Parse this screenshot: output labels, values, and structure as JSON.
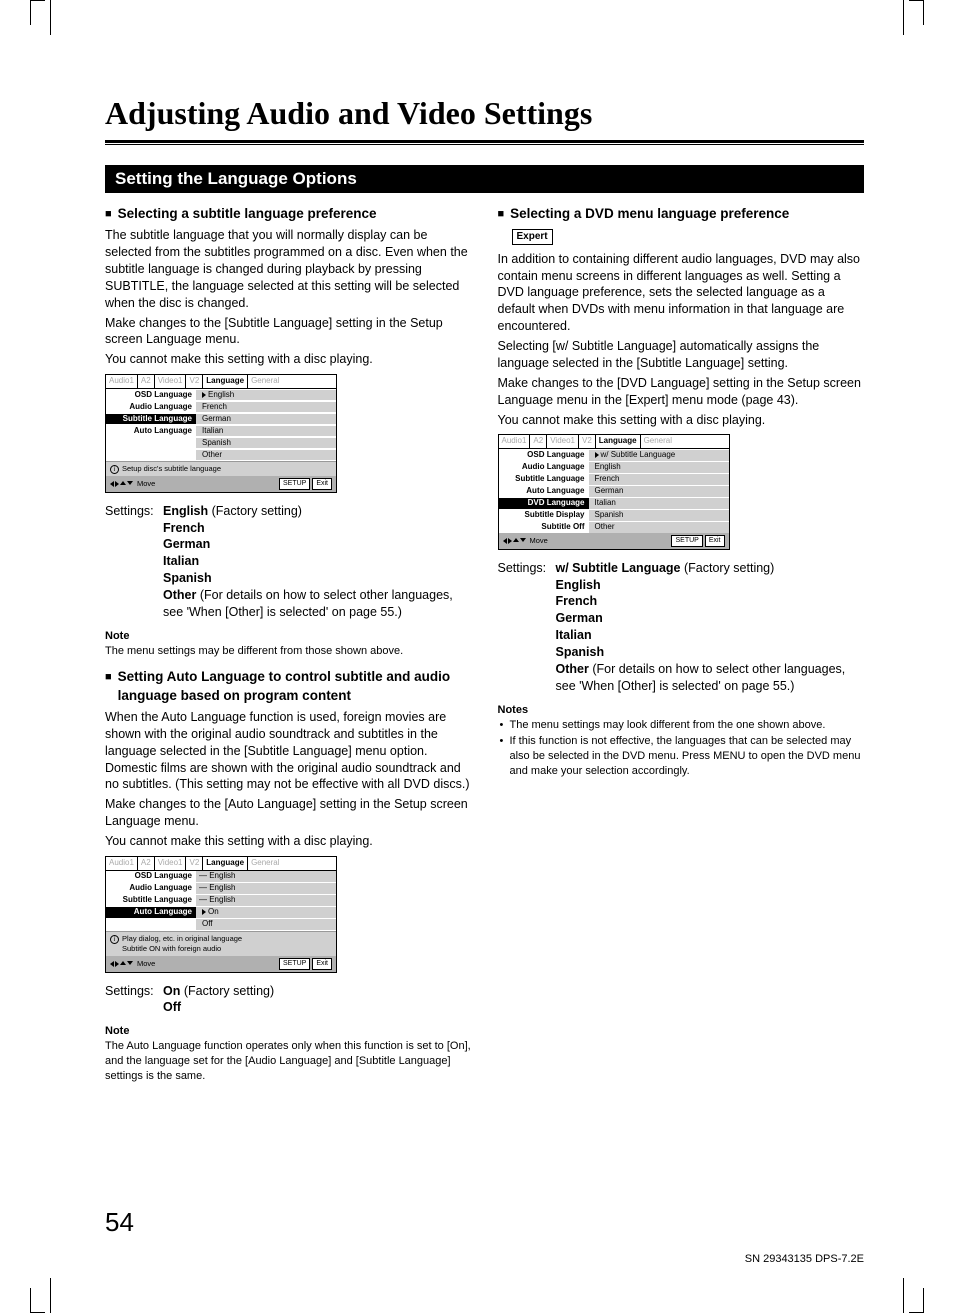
{
  "page": {
    "title": "Adjusting Audio and Video Settings",
    "section_bar": "Setting the Language Options",
    "page_number": "54",
    "footer_code": "SN 29343135 DPS-7.2E"
  },
  "left": {
    "h1": "Selecting a subtitle language preference",
    "p1": "The subtitle language that you will normally display can be selected from the subtitles programmed on a disc. Even when the subtitle language is changed during playback by pressing SUBTITLE, the language selected at this setting will be selected when the disc is changed.",
    "p2": "Make changes to the [Subtitle Language] setting in the Setup screen Language menu.",
    "p3": "You cannot make this setting with a disc playing.",
    "menu1": {
      "tabs": [
        "Audio1",
        "A2",
        "Video1",
        "V2",
        "Language",
        "General"
      ],
      "active_tab": "Language",
      "rows": [
        {
          "label": "OSD Language",
          "value": "English",
          "hl": false,
          "pointer": true
        },
        {
          "label": "Audio Language",
          "value": "French",
          "hl": false
        },
        {
          "label": "Subtitle Language",
          "value": "German",
          "hl": true
        },
        {
          "label": "Auto Language",
          "value": "Italian",
          "hl": false
        },
        {
          "label": "",
          "value": "Spanish",
          "hl": false
        },
        {
          "label": "",
          "value": "Other",
          "hl": false
        }
      ],
      "helper": "Setup disc's subtitle language",
      "footer_move": "Move",
      "btn_setup": "SETUP",
      "btn_exit": "Exit"
    },
    "settings1_label": "Settings:",
    "settings1": [
      {
        "bold": "English",
        "suffix": " (Factory setting)"
      },
      {
        "bold": "French",
        "suffix": ""
      },
      {
        "bold": "German",
        "suffix": ""
      },
      {
        "bold": "Italian",
        "suffix": ""
      },
      {
        "bold": "Spanish",
        "suffix": ""
      },
      {
        "bold": "Other",
        "suffix": " (For details on how to select other languages, see 'When [Other] is selected' on page 55.)"
      }
    ],
    "note1_label": "Note",
    "note1": "The menu settings may be different from those shown above.",
    "h2": "Setting Auto Language to control subtitle and audio language based on program content",
    "p4": "When the Auto Language function is used, foreign movies are shown with the original audio soundtrack and subtitles in the language selected in the [Subtitle Language] menu option. Domestic films are shown with the original audio soundtrack and no subtitles. (This setting may not be effective with all DVD discs.)",
    "p5": "Make changes to the [Auto Language] setting in the Setup screen Language menu.",
    "p6": "You cannot make this setting with a disc playing.",
    "menu2": {
      "tabs": [
        "Audio1",
        "A2",
        "Video1",
        "V2",
        "Language",
        "General"
      ],
      "active_tab": "Language",
      "rows": [
        {
          "label": "OSD Language",
          "value": "English",
          "dash": true
        },
        {
          "label": "Audio Language",
          "value": "English",
          "dash": true
        },
        {
          "label": "Subtitle Language",
          "value": "English",
          "dash": true
        },
        {
          "label": "Auto Language",
          "value": "On",
          "hl": true,
          "pointer": true
        },
        {
          "label": "",
          "value": "Off"
        }
      ],
      "helper": "Play dialog, etc. in original language",
      "helper2": "Subtitle ON with foreign audio",
      "footer_move": "Move",
      "btn_setup": "SETUP",
      "btn_exit": "Exit"
    },
    "settings2_label": "Settings:",
    "settings2": [
      {
        "bold": "On",
        "suffix": " (Factory setting)"
      },
      {
        "bold": "Off",
        "suffix": ""
      }
    ],
    "note2_label": "Note",
    "note2": "The Auto Language function operates only when this function is set to [On], and the language set for the [Audio Language] and [Subtitle Language] settings is the same."
  },
  "right": {
    "h1": "Selecting a DVD menu language preference",
    "expert": "Expert",
    "p1": "In addition to containing different audio languages, DVD may also contain menu screens in different languages as well. Setting a DVD language preference, sets the selected language as a default when DVDs with menu information in that language are encountered.",
    "p2": "Selecting [w/ Subtitle Language] automatically assigns the language selected in the [Subtitle Language] setting.",
    "p3": "Make changes to the [DVD Language] setting in the Setup screen Language menu in the [Expert] menu mode (page 43).",
    "p4": "You cannot make this setting with a disc playing.",
    "menu": {
      "tabs": [
        "Audio1",
        "A2",
        "Video1",
        "V2",
        "Language",
        "General"
      ],
      "active_tab": "Language",
      "rows": [
        {
          "label": "OSD Language",
          "value": "w/ Subtitle Language",
          "pointer": true
        },
        {
          "label": "Audio Language",
          "value": "English"
        },
        {
          "label": "Subtitle Language",
          "value": "French"
        },
        {
          "label": "Auto Language",
          "value": "German"
        },
        {
          "label": "DVD Language",
          "value": "Italian",
          "hl": true
        },
        {
          "label": "Subtitle Display",
          "value": "Spanish"
        },
        {
          "label": "Subtitle Off",
          "value": "Other"
        }
      ],
      "footer_move": "Move",
      "btn_setup": "SETUP",
      "btn_exit": "Exit"
    },
    "settings_label": "Settings:",
    "settings": [
      {
        "bold": "w/ Subtitle Language",
        "suffix": " (Factory setting)"
      },
      {
        "bold": "English",
        "suffix": ""
      },
      {
        "bold": "French",
        "suffix": ""
      },
      {
        "bold": "German",
        "suffix": ""
      },
      {
        "bold": "Italian",
        "suffix": ""
      },
      {
        "bold": "Spanish",
        "suffix": ""
      },
      {
        "bold": "Other",
        "suffix": " (For details on how to select other languages, see 'When [Other] is selected' on page 55.)"
      }
    ],
    "notes_label": "Notes",
    "notes": [
      "The menu settings may look different from the one shown above.",
      "If this function is not effective, the languages that can be selected may also be selected in the DVD menu. Press MENU to open the DVD menu and make your selection accordingly."
    ]
  }
}
